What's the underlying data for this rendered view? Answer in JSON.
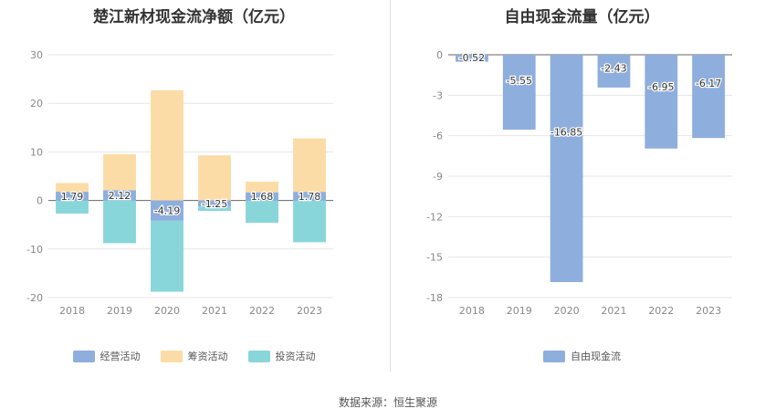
{
  "source_text": "数据来源：恒生聚源",
  "chart_data": [
    {
      "type": "bar",
      "stacked": true,
      "title": "楚江新材现金流净额（亿元）",
      "categories": [
        "2018",
        "2019",
        "2020",
        "2021",
        "2022",
        "2023"
      ],
      "ylim": [
        -20,
        30
      ],
      "yticks": [
        30,
        20,
        10,
        0,
        -10,
        -20
      ],
      "grid": true,
      "legend_position": "bottom",
      "series": [
        {
          "name": "经营活动",
          "color": "#8eaedd",
          "values": [
            1.79,
            2.12,
            -4.19,
            -1.25,
            1.68,
            1.78
          ],
          "labels": [
            "1.79",
            "2.12",
            "-4.19",
            "-1.25",
            "1.68",
            "1.78"
          ]
        },
        {
          "name": "筹资活动",
          "color": "#fcdca6",
          "values": [
            1.8,
            7.4,
            22.7,
            9.3,
            2.2,
            11.0
          ]
        },
        {
          "name": "投资活动",
          "color": "#89d6da",
          "values": [
            -2.7,
            -8.8,
            -14.6,
            -0.9,
            -4.6,
            -8.6
          ]
        }
      ]
    },
    {
      "type": "bar",
      "title": "自由现金流量（亿元）",
      "categories": [
        "2018",
        "2019",
        "2020",
        "2021",
        "2022",
        "2023"
      ],
      "ylim": [
        -18,
        0
      ],
      "yticks": [
        0,
        -3,
        -6,
        -9,
        -12,
        -15,
        -18
      ],
      "grid": true,
      "legend_position": "bottom",
      "series": [
        {
          "name": "自由现金流",
          "color": "#8eaedd",
          "values": [
            -0.52,
            -5.55,
            -16.85,
            -2.43,
            -6.95,
            -6.17
          ],
          "labels": [
            "-0.52",
            "-5.55",
            "-16.85",
            "-2.43",
            "-6.95",
            "-6.17"
          ]
        }
      ]
    }
  ]
}
